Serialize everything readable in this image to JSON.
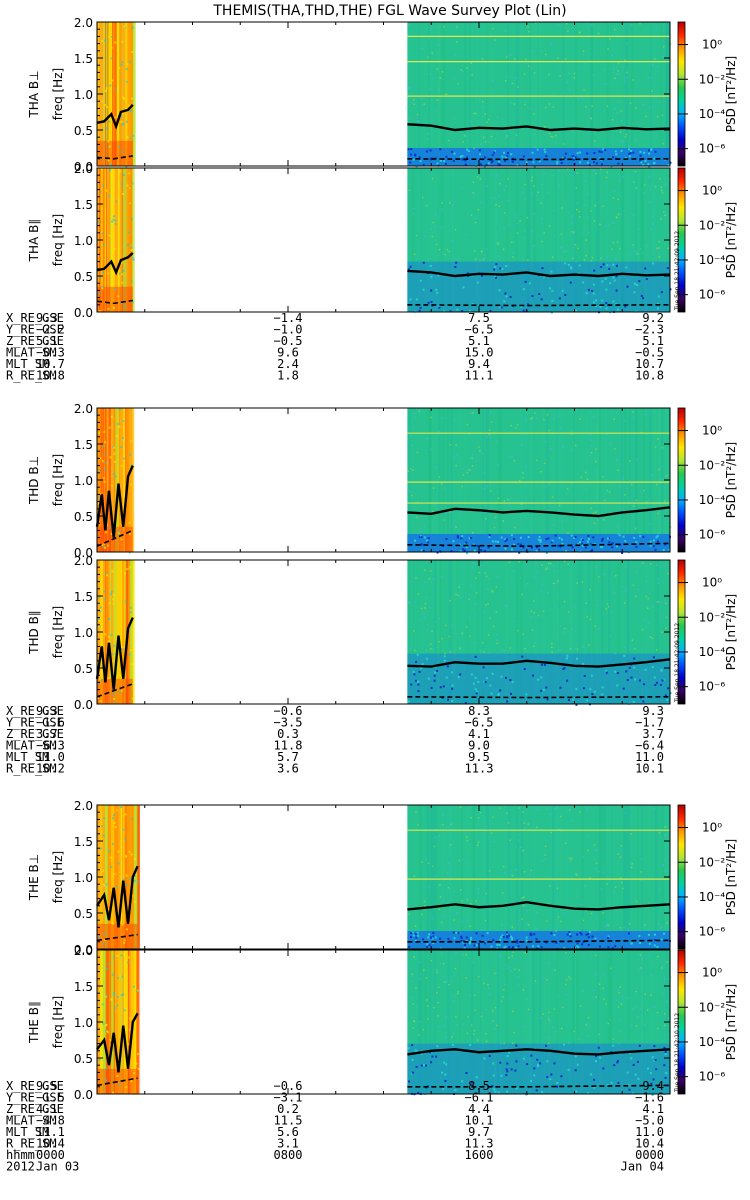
{
  "title": "THEMIS(THA,THD,THE) FGL Wave Survey Plot (Lin)",
  "chart_data": {
    "type": "heatmap",
    "x_axis": {
      "label": "hhmm",
      "tick_values": [
        "0000",
        "0800",
        "1600",
        "0000"
      ],
      "date_labels": [
        "Jan 03",
        "Jan 04"
      ],
      "year": "2012",
      "range_hours": [
        0,
        24
      ]
    },
    "colorbar": {
      "label": "PSD [nT²/Hz]",
      "scale": "log",
      "tick_labels": [
        "10⁰",
        "10⁻²",
        "10⁻⁴",
        "10⁻⁶"
      ],
      "tick_exponents": [
        0,
        -2,
        -4,
        -6
      ],
      "colors": [
        "#000000",
        "#3b0064",
        "#0000c8",
        "#0050ff",
        "#00b4ff",
        "#00d2a0",
        "#28c850",
        "#b4e632",
        "#ffe600",
        "#ff9600",
        "#ff2800",
        "#b40000"
      ]
    },
    "panels": [
      {
        "id": "tha-perp",
        "probe": "THA",
        "component": "THA B⊥",
        "ylabel": "freq [Hz]",
        "ylim": [
          0,
          2
        ],
        "yticks": [
          "0.0",
          "0.5",
          "1.0",
          "1.5",
          "2.0"
        ],
        "data_coverage_hours": [
          [
            0,
            1.5
          ],
          [
            13,
            24
          ]
        ],
        "colorbar": true,
        "harmonics_hz": [
          0.97,
          1.45,
          1.8
        ],
        "fce_line": [
          {
            "t": 0,
            "f": 0.6
          },
          {
            "t": 0.3,
            "f": 0.62
          },
          {
            "t": 0.6,
            "f": 0.72
          },
          {
            "t": 0.8,
            "f": 0.55
          },
          {
            "t": 1.0,
            "f": 0.75
          },
          {
            "t": 1.3,
            "f": 0.78
          },
          {
            "t": 1.5,
            "f": 0.85
          },
          {
            "t": 13,
            "f": 0.58
          },
          {
            "t": 14,
            "f": 0.56
          },
          {
            "t": 15,
            "f": 0.5
          },
          {
            "t": 16,
            "f": 0.53
          },
          {
            "t": 17,
            "f": 0.52
          },
          {
            "t": 18,
            "f": 0.55
          },
          {
            "t": 19,
            "f": 0.5
          },
          {
            "t": 20,
            "f": 0.52
          },
          {
            "t": 21,
            "f": 0.5
          },
          {
            "t": 22,
            "f": 0.53
          },
          {
            "t": 23,
            "f": 0.51
          },
          {
            "t": 24,
            "f": 0.52
          }
        ],
        "dashed_line": [
          {
            "t": 0,
            "f": 0.12
          },
          {
            "t": 0.7,
            "f": 0.1
          },
          {
            "t": 1.5,
            "f": 0.14
          },
          {
            "t": 13,
            "f": 0.1
          },
          {
            "t": 18,
            "f": 0.09
          },
          {
            "t": 24,
            "f": 0.1
          }
        ]
      },
      {
        "id": "tha-para",
        "probe": "THA",
        "component": "THA B∥",
        "ylabel": "freq [Hz]",
        "ylim": [
          0,
          2
        ],
        "yticks": [
          "0.0",
          "0.5",
          "1.0",
          "1.5",
          "2.0"
        ],
        "data_coverage_hours": [
          [
            0,
            1.5
          ],
          [
            13,
            24
          ]
        ],
        "colorbar": true,
        "harmonics_hz": [],
        "fce_line": [
          {
            "t": 0,
            "f": 0.58
          },
          {
            "t": 0.3,
            "f": 0.6
          },
          {
            "t": 0.6,
            "f": 0.7
          },
          {
            "t": 0.8,
            "f": 0.55
          },
          {
            "t": 1.0,
            "f": 0.72
          },
          {
            "t": 1.3,
            "f": 0.76
          },
          {
            "t": 1.5,
            "f": 0.82
          },
          {
            "t": 13,
            "f": 0.57
          },
          {
            "t": 14,
            "f": 0.55
          },
          {
            "t": 15,
            "f": 0.5
          },
          {
            "t": 16,
            "f": 0.53
          },
          {
            "t": 17,
            "f": 0.52
          },
          {
            "t": 18,
            "f": 0.55
          },
          {
            "t": 19,
            "f": 0.5
          },
          {
            "t": 20,
            "f": 0.52
          },
          {
            "t": 21,
            "f": 0.5
          },
          {
            "t": 22,
            "f": 0.53
          },
          {
            "t": 23,
            "f": 0.51
          },
          {
            "t": 24,
            "f": 0.52
          }
        ],
        "dashed_line": [
          {
            "t": 0,
            "f": 0.15
          },
          {
            "t": 0.7,
            "f": 0.12
          },
          {
            "t": 1.5,
            "f": 0.16
          },
          {
            "t": 13,
            "f": 0.1
          },
          {
            "t": 18,
            "f": 0.09
          },
          {
            "t": 24,
            "f": 0.1
          }
        ]
      },
      {
        "id": "thd-perp",
        "probe": "THD",
        "component": "THD B⊥",
        "ylabel": "freq [Hz]",
        "ylim": [
          0,
          2
        ],
        "yticks": [
          "0.0",
          "0.5",
          "1.0",
          "1.5",
          "2.0"
        ],
        "data_coverage_hours": [
          [
            0,
            1.5
          ],
          [
            13,
            24
          ]
        ],
        "colorbar": true,
        "harmonics_hz": [
          0.97,
          1.65,
          0.68
        ],
        "fce_line": [
          {
            "t": 0,
            "f": 0.35
          },
          {
            "t": 0.2,
            "f": 0.8
          },
          {
            "t": 0.35,
            "f": 0.3
          },
          {
            "t": 0.5,
            "f": 0.85
          },
          {
            "t": 0.7,
            "f": 0.2
          },
          {
            "t": 0.9,
            "f": 0.95
          },
          {
            "t": 1.1,
            "f": 0.35
          },
          {
            "t": 1.3,
            "f": 1.05
          },
          {
            "t": 1.5,
            "f": 1.2
          },
          {
            "t": 13,
            "f": 0.55
          },
          {
            "t": 14,
            "f": 0.53
          },
          {
            "t": 15,
            "f": 0.6
          },
          {
            "t": 16,
            "f": 0.58
          },
          {
            "t": 17,
            "f": 0.55
          },
          {
            "t": 18,
            "f": 0.57
          },
          {
            "t": 19,
            "f": 0.55
          },
          {
            "t": 20,
            "f": 0.52
          },
          {
            "t": 21,
            "f": 0.5
          },
          {
            "t": 22,
            "f": 0.55
          },
          {
            "t": 23,
            "f": 0.58
          },
          {
            "t": 24,
            "f": 0.62
          }
        ],
        "dashed_line": [
          {
            "t": 0,
            "f": 0.08
          },
          {
            "t": 1.5,
            "f": 0.3
          },
          {
            "t": 13,
            "f": 0.1
          },
          {
            "t": 18,
            "f": 0.08
          },
          {
            "t": 24,
            "f": 0.12
          }
        ]
      },
      {
        "id": "thd-para",
        "probe": "THD",
        "component": "THD B∥",
        "ylabel": "freq [Hz]",
        "ylim": [
          0,
          2
        ],
        "yticks": [
          "0.0",
          "0.5",
          "1.0",
          "1.5",
          "2.0"
        ],
        "data_coverage_hours": [
          [
            0,
            1.5
          ],
          [
            13,
            24
          ]
        ],
        "colorbar": true,
        "harmonics_hz": [],
        "fce_line": [
          {
            "t": 0,
            "f": 0.35
          },
          {
            "t": 0.2,
            "f": 0.8
          },
          {
            "t": 0.35,
            "f": 0.3
          },
          {
            "t": 0.5,
            "f": 0.85
          },
          {
            "t": 0.7,
            "f": 0.2
          },
          {
            "t": 0.9,
            "f": 0.95
          },
          {
            "t": 1.1,
            "f": 0.35
          },
          {
            "t": 1.3,
            "f": 1.05
          },
          {
            "t": 1.5,
            "f": 1.2
          },
          {
            "t": 13,
            "f": 0.53
          },
          {
            "t": 14,
            "f": 0.52
          },
          {
            "t": 15,
            "f": 0.58
          },
          {
            "t": 16,
            "f": 0.56
          },
          {
            "t": 17,
            "f": 0.56
          },
          {
            "t": 18,
            "f": 0.6
          },
          {
            "t": 19,
            "f": 0.57
          },
          {
            "t": 20,
            "f": 0.53
          },
          {
            "t": 21,
            "f": 0.52
          },
          {
            "t": 22,
            "f": 0.55
          },
          {
            "t": 23,
            "f": 0.58
          },
          {
            "t": 24,
            "f": 0.62
          }
        ],
        "dashed_line": [
          {
            "t": 0,
            "f": 0.1
          },
          {
            "t": 1.5,
            "f": 0.28
          },
          {
            "t": 13,
            "f": 0.1
          },
          {
            "t": 18,
            "f": 0.09
          },
          {
            "t": 24,
            "f": 0.1
          }
        ]
      },
      {
        "id": "the-perp",
        "probe": "THE",
        "component": "THE B⊥",
        "ylabel": "freq [Hz]",
        "ylim": [
          0,
          2
        ],
        "yticks": [
          "0.0",
          "0.5",
          "1.0",
          "1.5",
          "2.0"
        ],
        "data_coverage_hours": [
          [
            0,
            1.7
          ],
          [
            13,
            24
          ]
        ],
        "colorbar": true,
        "harmonics_hz": [
          0.97,
          1.65
        ],
        "fce_line": [
          {
            "t": 0,
            "f": 0.6
          },
          {
            "t": 0.3,
            "f": 0.75
          },
          {
            "t": 0.5,
            "f": 0.4
          },
          {
            "t": 0.7,
            "f": 0.85
          },
          {
            "t": 0.9,
            "f": 0.3
          },
          {
            "t": 1.1,
            "f": 0.95
          },
          {
            "t": 1.3,
            "f": 0.35
          },
          {
            "t": 1.5,
            "f": 1.0
          },
          {
            "t": 1.7,
            "f": 1.15
          },
          {
            "t": 13,
            "f": 0.55
          },
          {
            "t": 14,
            "f": 0.58
          },
          {
            "t": 15,
            "f": 0.62
          },
          {
            "t": 16,
            "f": 0.58
          },
          {
            "t": 17,
            "f": 0.6
          },
          {
            "t": 18,
            "f": 0.65
          },
          {
            "t": 19,
            "f": 0.6
          },
          {
            "t": 20,
            "f": 0.56
          },
          {
            "t": 21,
            "f": 0.55
          },
          {
            "t": 22,
            "f": 0.58
          },
          {
            "t": 23,
            "f": 0.6
          },
          {
            "t": 24,
            "f": 0.62
          }
        ],
        "dashed_line": [
          {
            "t": 0,
            "f": 0.12
          },
          {
            "t": 1.7,
            "f": 0.2
          },
          {
            "t": 13,
            "f": 0.1
          },
          {
            "t": 18,
            "f": 0.1
          },
          {
            "t": 24,
            "f": 0.12
          }
        ]
      },
      {
        "id": "the-para",
        "probe": "THE",
        "component": "THE B∥",
        "ylabel": "freq [Hz]",
        "ylim": [
          0,
          2
        ],
        "yticks": [
          "0.0",
          "0.5",
          "1.0",
          "1.5",
          "2.0"
        ],
        "data_coverage_hours": [
          [
            0,
            1.7
          ],
          [
            13,
            24
          ]
        ],
        "colorbar": true,
        "harmonics_hz": [],
        "fce_line": [
          {
            "t": 0,
            "f": 0.62
          },
          {
            "t": 0.3,
            "f": 0.75
          },
          {
            "t": 0.5,
            "f": 0.4
          },
          {
            "t": 0.7,
            "f": 0.85
          },
          {
            "t": 0.9,
            "f": 0.3
          },
          {
            "t": 1.1,
            "f": 0.95
          },
          {
            "t": 1.3,
            "f": 0.35
          },
          {
            "t": 1.5,
            "f": 1.0
          },
          {
            "t": 1.7,
            "f": 1.12
          },
          {
            "t": 13,
            "f": 0.55
          },
          {
            "t": 14,
            "f": 0.6
          },
          {
            "t": 15,
            "f": 0.62
          },
          {
            "t": 16,
            "f": 0.58
          },
          {
            "t": 17,
            "f": 0.6
          },
          {
            "t": 18,
            "f": 0.62
          },
          {
            "t": 19,
            "f": 0.6
          },
          {
            "t": 20,
            "f": 0.56
          },
          {
            "t": 21,
            "f": 0.55
          },
          {
            "t": 22,
            "f": 0.58
          },
          {
            "t": 23,
            "f": 0.6
          },
          {
            "t": 24,
            "f": 0.62
          }
        ],
        "dashed_line": [
          {
            "t": 0,
            "f": 0.12
          },
          {
            "t": 1.7,
            "f": 0.22
          },
          {
            "t": 13,
            "f": 0.1
          },
          {
            "t": 18,
            "f": 0.1
          },
          {
            "t": 24,
            "f": 0.12
          }
        ]
      }
    ],
    "timestamp_labels": [
      "Tue Sep 18 21:42:09 2012",
      "Tue Sep 18 21:42:09 2012",
      "Tue Sep 18 21:42:10 2012"
    ],
    "ephemeris": [
      {
        "probe": "THA",
        "rows": [
          {
            "label": "X_RE_GSE",
            "values": [
              "9.3",
              "-1.4",
              "7.5",
              "9.2"
            ]
          },
          {
            "label": "Y_RE_GSE",
            "values": [
              "-2.2",
              "-1.0",
              "-6.5",
              "-2.3"
            ]
          },
          {
            "label": "Z_RE_GSE",
            "values": [
              "5.1",
              "-0.5",
              "5.1",
              "5.1"
            ]
          },
          {
            "label": "MLAT_SM",
            "values": [
              "-0.3",
              "9.6",
              "15.0",
              "-0.5"
            ]
          },
          {
            "label": "MLT_SM",
            "values": [
              "10.7",
              "2.4",
              "9.4",
              "10.7"
            ]
          },
          {
            "label": "R_RE_SM",
            "values": [
              "10.8",
              "1.8",
              "11.1",
              "10.8"
            ]
          }
        ]
      },
      {
        "probe": "THD",
        "rows": [
          {
            "label": "X_RE_GSE",
            "values": [
              "9.3",
              "-0.6",
              "8.3",
              "9.3"
            ]
          },
          {
            "label": "Y_RE_GSE",
            "values": [
              "-1.6",
              "-3.5",
              "-6.5",
              "-1.7"
            ]
          },
          {
            "label": "Z_RE_GSE",
            "values": [
              "3.7",
              "0.3",
              "4.1",
              "3.7"
            ]
          },
          {
            "label": "MLAT_SM",
            "values": [
              "-6.3",
              "11.8",
              "9.0",
              "-6.4"
            ]
          },
          {
            "label": "MLT_SM",
            "values": [
              "11.0",
              "5.7",
              "9.5",
              "11.0"
            ]
          },
          {
            "label": "R_RE_SM",
            "values": [
              "10.2",
              "3.6",
              "11.3",
              "10.1"
            ]
          }
        ]
      },
      {
        "probe": "THE",
        "rows": [
          {
            "label": "X_RE_GSE",
            "values": [
              "9.5",
              "-0.6",
              "8.5",
              "9.4"
            ]
          },
          {
            "label": "Y_RE_GSE",
            "values": [
              "-1.5",
              "-3.1",
              "-6.1",
              "-1.6"
            ]
          },
          {
            "label": "Z_RE_GSE",
            "values": [
              "4.1",
              "0.2",
              "4.4",
              "4.1"
            ]
          },
          {
            "label": "MLAT_SM",
            "values": [
              "-4.8",
              "11.5",
              "10.1",
              "-5.0"
            ]
          },
          {
            "label": "MLT_SM",
            "values": [
              "11.1",
              "5.6",
              "9.7",
              "11.0"
            ]
          },
          {
            "label": "R_RE_SM",
            "values": [
              "10.4",
              "3.1",
              "11.3",
              "10.4"
            ]
          }
        ]
      }
    ]
  }
}
